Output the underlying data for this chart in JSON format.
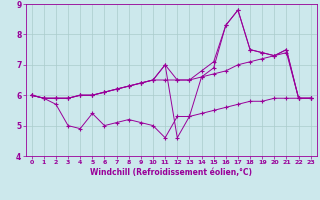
{
  "xlabel": "Windchill (Refroidissement éolien,°C)",
  "background_color": "#cce8ec",
  "line_color": "#990099",
  "grid_color": "#aacccc",
  "xlim": [
    -0.5,
    23.5
  ],
  "ylim": [
    4,
    9
  ],
  "yticks": [
    4,
    5,
    6,
    7,
    8,
    9
  ],
  "xticks": [
    0,
    1,
    2,
    3,
    4,
    5,
    6,
    7,
    8,
    9,
    10,
    11,
    12,
    13,
    14,
    15,
    16,
    17,
    18,
    19,
    20,
    21,
    22,
    23
  ],
  "hours": [
    0,
    1,
    2,
    3,
    4,
    5,
    6,
    7,
    8,
    9,
    10,
    11,
    12,
    13,
    14,
    15,
    16,
    17,
    18,
    19,
    20,
    21,
    22,
    23
  ],
  "line1": [
    6.0,
    5.9,
    5.7,
    5.0,
    4.9,
    5.4,
    5.0,
    5.1,
    5.2,
    5.1,
    5.0,
    4.6,
    5.3,
    5.3,
    5.4,
    5.5,
    5.6,
    5.7,
    5.8,
    5.8,
    5.9,
    5.9,
    5.9,
    5.9
  ],
  "line2": [
    6.0,
    5.9,
    5.9,
    5.9,
    6.0,
    6.0,
    6.1,
    6.2,
    6.3,
    6.4,
    6.5,
    6.5,
    6.5,
    6.5,
    6.6,
    6.7,
    6.8,
    7.0,
    7.1,
    7.2,
    7.3,
    7.4,
    5.9,
    5.9
  ],
  "line3": [
    6.0,
    5.9,
    5.9,
    5.9,
    6.0,
    6.0,
    6.1,
    6.2,
    6.3,
    6.4,
    6.5,
    7.0,
    6.5,
    6.5,
    6.8,
    7.1,
    8.3,
    8.8,
    7.5,
    7.4,
    7.3,
    7.5,
    5.9,
    5.9
  ],
  "line4": [
    6.0,
    5.9,
    5.9,
    5.9,
    6.0,
    6.0,
    6.1,
    6.2,
    6.3,
    6.4,
    6.5,
    7.0,
    4.6,
    5.3,
    6.6,
    6.9,
    8.3,
    8.8,
    7.5,
    7.4,
    7.3,
    7.5,
    5.9,
    5.9
  ]
}
